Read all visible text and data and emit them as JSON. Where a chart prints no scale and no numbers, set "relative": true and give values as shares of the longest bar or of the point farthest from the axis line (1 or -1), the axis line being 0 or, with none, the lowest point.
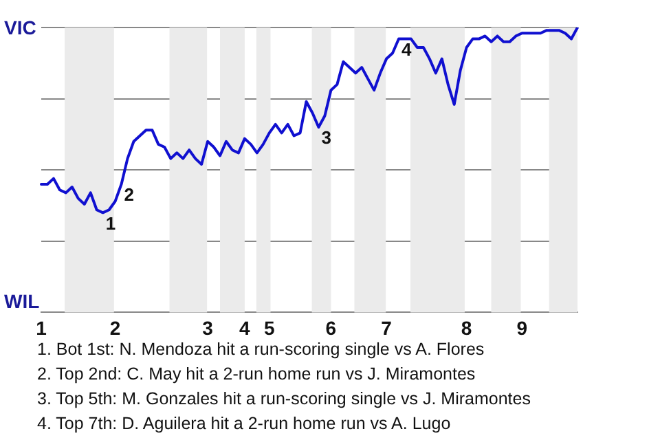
{
  "chart_data": {
    "type": "line",
    "relative": true,
    "categories": [
      "1",
      null,
      null,
      null,
      null,
      null,
      null,
      null,
      null,
      null,
      null,
      null,
      "2",
      null,
      null,
      null,
      null,
      null,
      null,
      null,
      null,
      null,
      null,
      null,
      null,
      null,
      null,
      "3",
      null,
      null,
      null,
      null,
      null,
      "4",
      null,
      null,
      null,
      "5",
      null,
      null,
      null,
      null,
      null,
      null,
      null,
      null,
      null,
      "6",
      null,
      null,
      null,
      null,
      null,
      null,
      null,
      null,
      "7",
      null,
      null,
      null,
      null,
      null,
      null,
      null,
      null,
      null,
      null,
      null,
      null,
      "8",
      null,
      null,
      null,
      null,
      null,
      null,
      null,
      null,
      "9",
      null,
      null,
      null,
      null,
      null,
      null,
      null,
      null,
      null
    ],
    "series": [
      {
        "color": "#1010d0",
        "values": [
          0.45,
          0.45,
          0.47,
          0.43,
          0.42,
          0.44,
          0.4,
          0.38,
          0.42,
          0.36,
          0.35,
          0.36,
          0.39,
          0.45,
          0.54,
          0.6,
          0.62,
          0.64,
          0.64,
          0.59,
          0.58,
          0.54,
          0.56,
          0.54,
          0.57,
          0.54,
          0.52,
          0.6,
          0.58,
          0.55,
          0.6,
          0.57,
          0.56,
          0.61,
          0.59,
          0.56,
          0.59,
          0.63,
          0.66,
          0.63,
          0.66,
          0.62,
          0.63,
          0.74,
          0.7,
          0.65,
          0.69,
          0.78,
          0.8,
          0.88,
          0.86,
          0.84,
          0.86,
          0.82,
          0.78,
          0.84,
          0.89,
          0.91,
          0.96,
          0.96,
          0.96,
          0.93,
          0.93,
          0.89,
          0.84,
          0.89,
          0.8,
          0.73,
          0.85,
          0.93,
          0.96,
          0.96,
          0.97,
          0.95,
          0.97,
          0.95,
          0.95,
          0.97,
          0.98,
          0.98,
          0.98,
          0.98,
          0.99,
          0.99,
          0.99,
          0.98,
          0.96,
          1
        ]
      }
    ],
    "grid": "y",
    "legend": false,
    "marker": "none",
    "line_style": "solid",
    "annotations": [
      "VIC",
      "WIL",
      {
        "text": "1",
        "y": 0.35
      },
      {
        "text": "2",
        "y": 0.45
      },
      {
        "text": "3",
        "y": 0.65
      },
      {
        "text": "4",
        "y": 0.96
      },
      "1. Bot 1st: N. Mendoza hit a run-scoring single vs A. Flores",
      "2. Top 2nd: C. May hit a 2-run home run vs J. Miramontes",
      "3. Top 5th: M. Gonzales hit a run-scoring single vs J. Miramontes",
      "4. Top 7th: D. Aguilera hit a 2-run home run vs A. Lugo"
    ]
  }
}
